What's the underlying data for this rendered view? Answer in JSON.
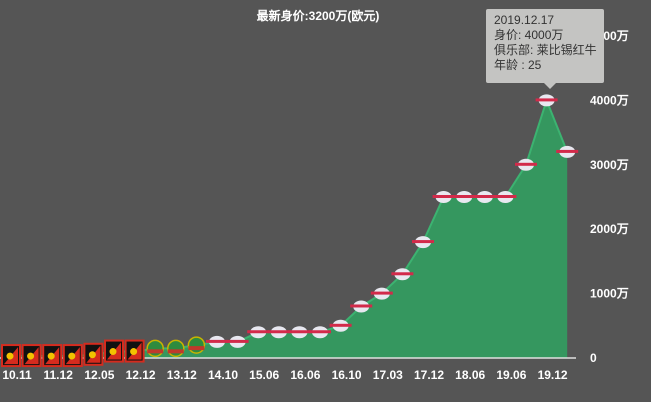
{
  "title": "最新身价:3200万(欧元)",
  "tooltip": {
    "date": "2019.12.17",
    "value": "身价: 4000万",
    "club": "俱乐部: 莱比锡红牛",
    "age": "年龄 : 25"
  },
  "colors": {
    "background": "#555555",
    "area": "#35975f",
    "line": "#3cb371",
    "axis": "#e0e0e0",
    "admira": "#d52b1e",
    "rapid": "#2e8b3e",
    "redbull": "#e8e8f0"
  },
  "chart_data": {
    "type": "area",
    "title": "最新身价:3200万(欧元)",
    "ylim": [
      0,
      5000
    ],
    "y_ticks": [
      "0",
      "1000万",
      "2000万",
      "3000万",
      "4000万",
      "5000万"
    ],
    "y_tick_values": [
      0,
      1000,
      2000,
      3000,
      4000,
      5000
    ],
    "x_tick_labels": [
      "10.11",
      "11.12",
      "12.05",
      "12.12",
      "13.12",
      "14.10",
      "15.06",
      "16.06",
      "16.10",
      "17.03",
      "17.12",
      "18.06",
      "19.06",
      "19.12"
    ],
    "values": [
      30,
      30,
      30,
      30,
      50,
      100,
      100,
      150,
      150,
      200,
      250,
      250,
      400,
      400,
      400,
      400,
      500,
      800,
      1000,
      1300,
      1800,
      2500,
      2500,
      2500,
      2500,
      3000,
      4000,
      3200
    ],
    "markers": [
      "admira-badge",
      "admira-badge",
      "admira-badge",
      "admira-badge",
      "admira-badge",
      "admira-badge",
      "admira-badge",
      "rapid-badge",
      "rapid-badge",
      "rapid-badge",
      "redbull-badge",
      "redbull-badge",
      "redbull-badge",
      "redbull-badge",
      "redbull-badge",
      "redbull-badge",
      "redbull-badge",
      "redbull-badge",
      "redbull-badge",
      "redbull-badge",
      "redbull-badge",
      "redbull-badge",
      "redbull-badge",
      "redbull-badge",
      "redbull-badge",
      "redbull-badge",
      "redbull-badge",
      "redbull-badge"
    ],
    "grid": false,
    "legend": "none"
  }
}
